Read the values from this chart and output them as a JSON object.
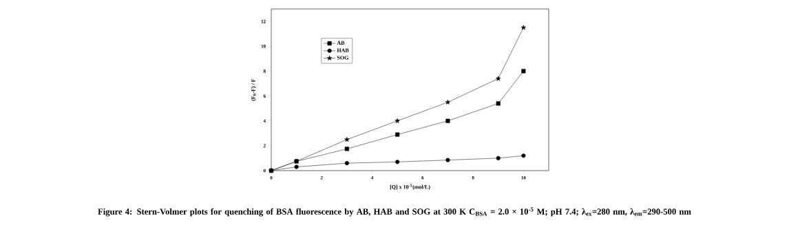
{
  "chart_data": {
    "type": "line",
    "xlabel": "[Q] x 10$^{-5}$(mol/L)",
    "ylabel": "(F$_{0}$-F) / F",
    "x": [
      0,
      1,
      3,
      5,
      7,
      9,
      10
    ],
    "series": [
      {
        "name": "AB",
        "color": "#000000",
        "marker": "square",
        "values": [
          0,
          0.75,
          1.75,
          2.9,
          4.0,
          5.4,
          8.0
        ]
      },
      {
        "name": "HAB",
        "color": "#000000",
        "marker": "circle",
        "values": [
          0,
          0.3,
          0.6,
          0.7,
          0.85,
          1.0,
          1.2
        ]
      },
      {
        "name": "SOG",
        "color": "#000000",
        "marker": "star",
        "values": [
          0,
          0.75,
          2.5,
          4.0,
          5.5,
          7.4,
          11.5
        ]
      }
    ],
    "xlim": [
      0,
      11
    ],
    "ylim": [
      0,
      13
    ],
    "xticks": [
      0,
      2,
      4,
      6,
      8,
      10
    ],
    "yticks": [
      0,
      2,
      4,
      6,
      8,
      10,
      12
    ],
    "legend": "top left",
    "grid": false,
    "line_style": "solid",
    "annotations": [
      "Figure 4: Stern-Volmer plots for quenching of BSA fluorescence by AB, HAB and SOG at 300 K C$_{BSA}$ = 2.0 × 10$^{-5}$ M; pH 7.4; λ$_{ex}$=280 nm, λ$_{em}$=290-500 nm"
    ]
  }
}
